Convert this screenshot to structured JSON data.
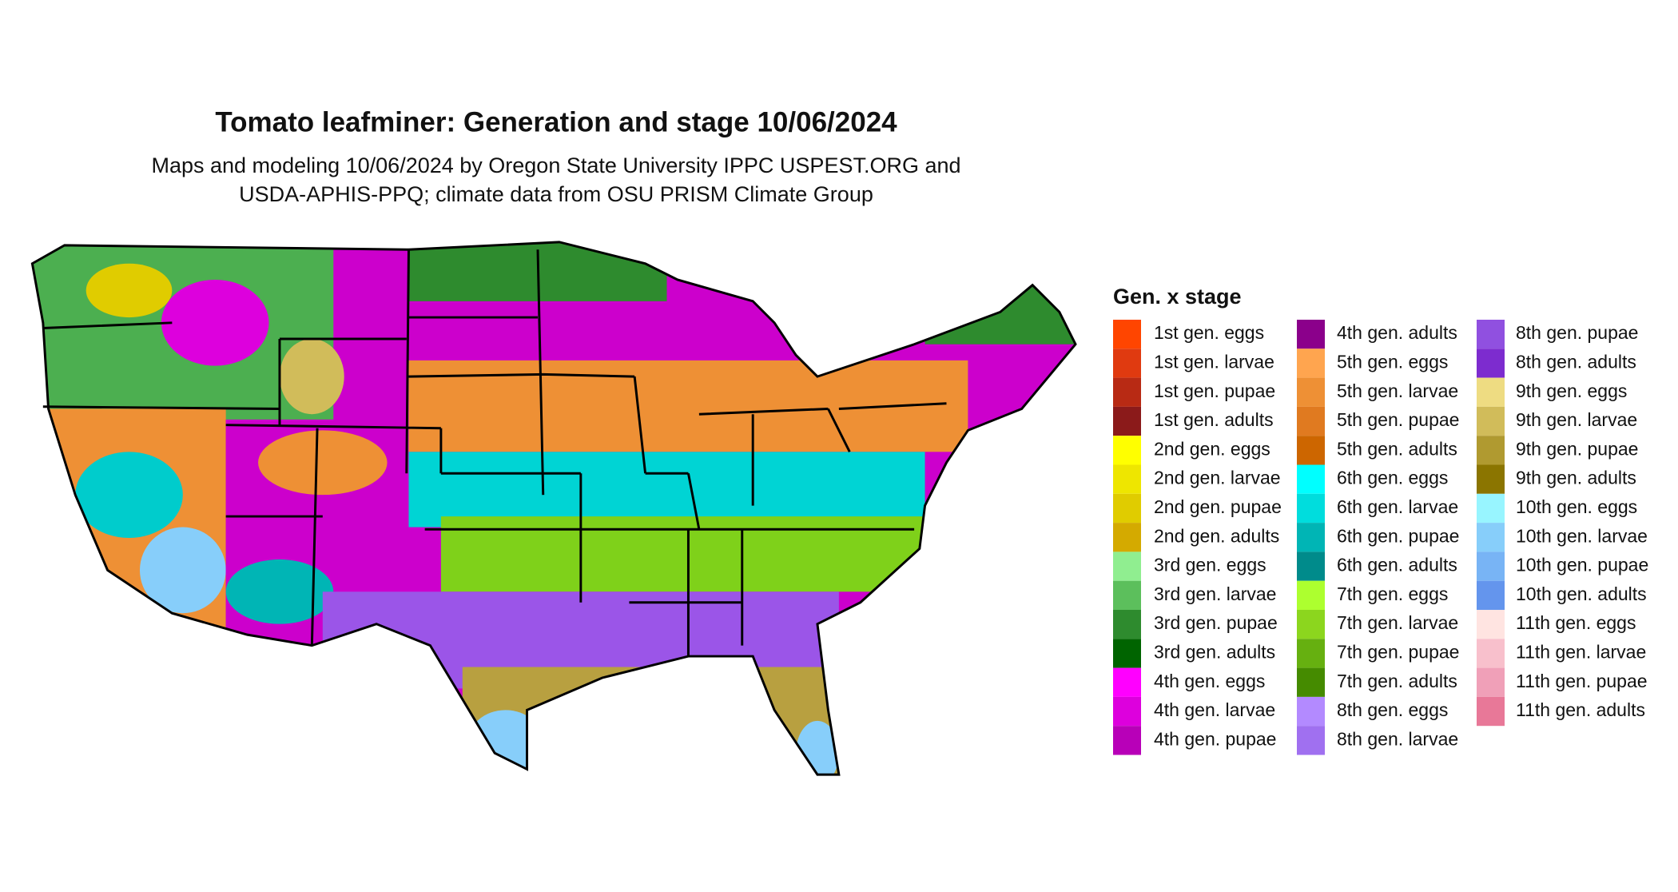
{
  "title": "Tomato leafminer: Generation and stage 10/06/2024",
  "subtitle": [
    "Maps and modeling 10/06/2024 by Oregon State University IPPC USPEST.ORG and",
    "USDA-APHIS-PPQ; climate data from OSU PRISM Climate Group"
  ],
  "legend": {
    "title": "Gen. x stage",
    "items": [
      {
        "label": "1st gen. eggs",
        "color": "#ff4500"
      },
      {
        "label": "1st gen. larvae",
        "color": "#e03a10"
      },
      {
        "label": "1st gen. pupae",
        "color": "#b82a14"
      },
      {
        "label": "1st gen. adults",
        "color": "#8b1a1a"
      },
      {
        "label": "2nd gen. eggs",
        "color": "#ffff00"
      },
      {
        "label": "2nd gen. larvae",
        "color": "#eee600"
      },
      {
        "label": "2nd gen. pupae",
        "color": "#e0cc00"
      },
      {
        "label": "2nd gen. adults",
        "color": "#d4aa00"
      },
      {
        "label": "3rd gen. eggs",
        "color": "#90ee90"
      },
      {
        "label": "3rd gen. larvae",
        "color": "#5cbf5c"
      },
      {
        "label": "3rd gen. pupae",
        "color": "#2e8b2e"
      },
      {
        "label": "3rd gen. adults",
        "color": "#006400"
      },
      {
        "label": "4th gen. eggs",
        "color": "#ff00ff"
      },
      {
        "label": "4th gen. larvae",
        "color": "#dd00dd"
      },
      {
        "label": "4th gen. pupae",
        "color": "#b800b8"
      },
      {
        "label": "4th gen. adults",
        "color": "#8b008b"
      },
      {
        "label": "5th gen. eggs",
        "color": "#ffa54f"
      },
      {
        "label": "5th gen. larvae",
        "color": "#ee9035"
      },
      {
        "label": "5th gen. pupae",
        "color": "#e07a20"
      },
      {
        "label": "5th gen. adults",
        "color": "#cd6600"
      },
      {
        "label": "6th gen. eggs",
        "color": "#00ffff"
      },
      {
        "label": "6th gen. larvae",
        "color": "#00dddd"
      },
      {
        "label": "6th gen. pupae",
        "color": "#00b5b5"
      },
      {
        "label": "6th gen. adults",
        "color": "#008b8b"
      },
      {
        "label": "7th gen. eggs",
        "color": "#adff2f"
      },
      {
        "label": "7th gen. larvae",
        "color": "#8cd61e"
      },
      {
        "label": "7th gen. pupae",
        "color": "#66b010"
      },
      {
        "label": "7th gen. adults",
        "color": "#458b00"
      },
      {
        "label": "8th gen. eggs",
        "color": "#b38aff"
      },
      {
        "label": "8th gen. larvae",
        "color": "#a070f0"
      },
      {
        "label": "8th gen. pupae",
        "color": "#9050e0"
      },
      {
        "label": "8th gen. adults",
        "color": "#7d2ccf"
      },
      {
        "label": "9th gen. eggs",
        "color": "#eedc82"
      },
      {
        "label": "9th gen. larvae",
        "color": "#d1bc5a"
      },
      {
        "label": "9th gen. pupae",
        "color": "#b09a30"
      },
      {
        "label": "9th gen. adults",
        "color": "#8b7500"
      },
      {
        "label": "10th gen. eggs",
        "color": "#98f5ff"
      },
      {
        "label": "10th gen. larvae",
        "color": "#87cefa"
      },
      {
        "label": "10th gen. pupae",
        "color": "#78b4f5"
      },
      {
        "label": "10th gen. adults",
        "color": "#6495ed"
      },
      {
        "label": "11th gen. eggs",
        "color": "#ffe4e1"
      },
      {
        "label": "11th gen. larvae",
        "color": "#f8c0cc"
      },
      {
        "label": "11th gen. pupae",
        "color": "#f0a0b8"
      },
      {
        "label": "11th gen. adults",
        "color": "#e87898"
      }
    ]
  }
}
